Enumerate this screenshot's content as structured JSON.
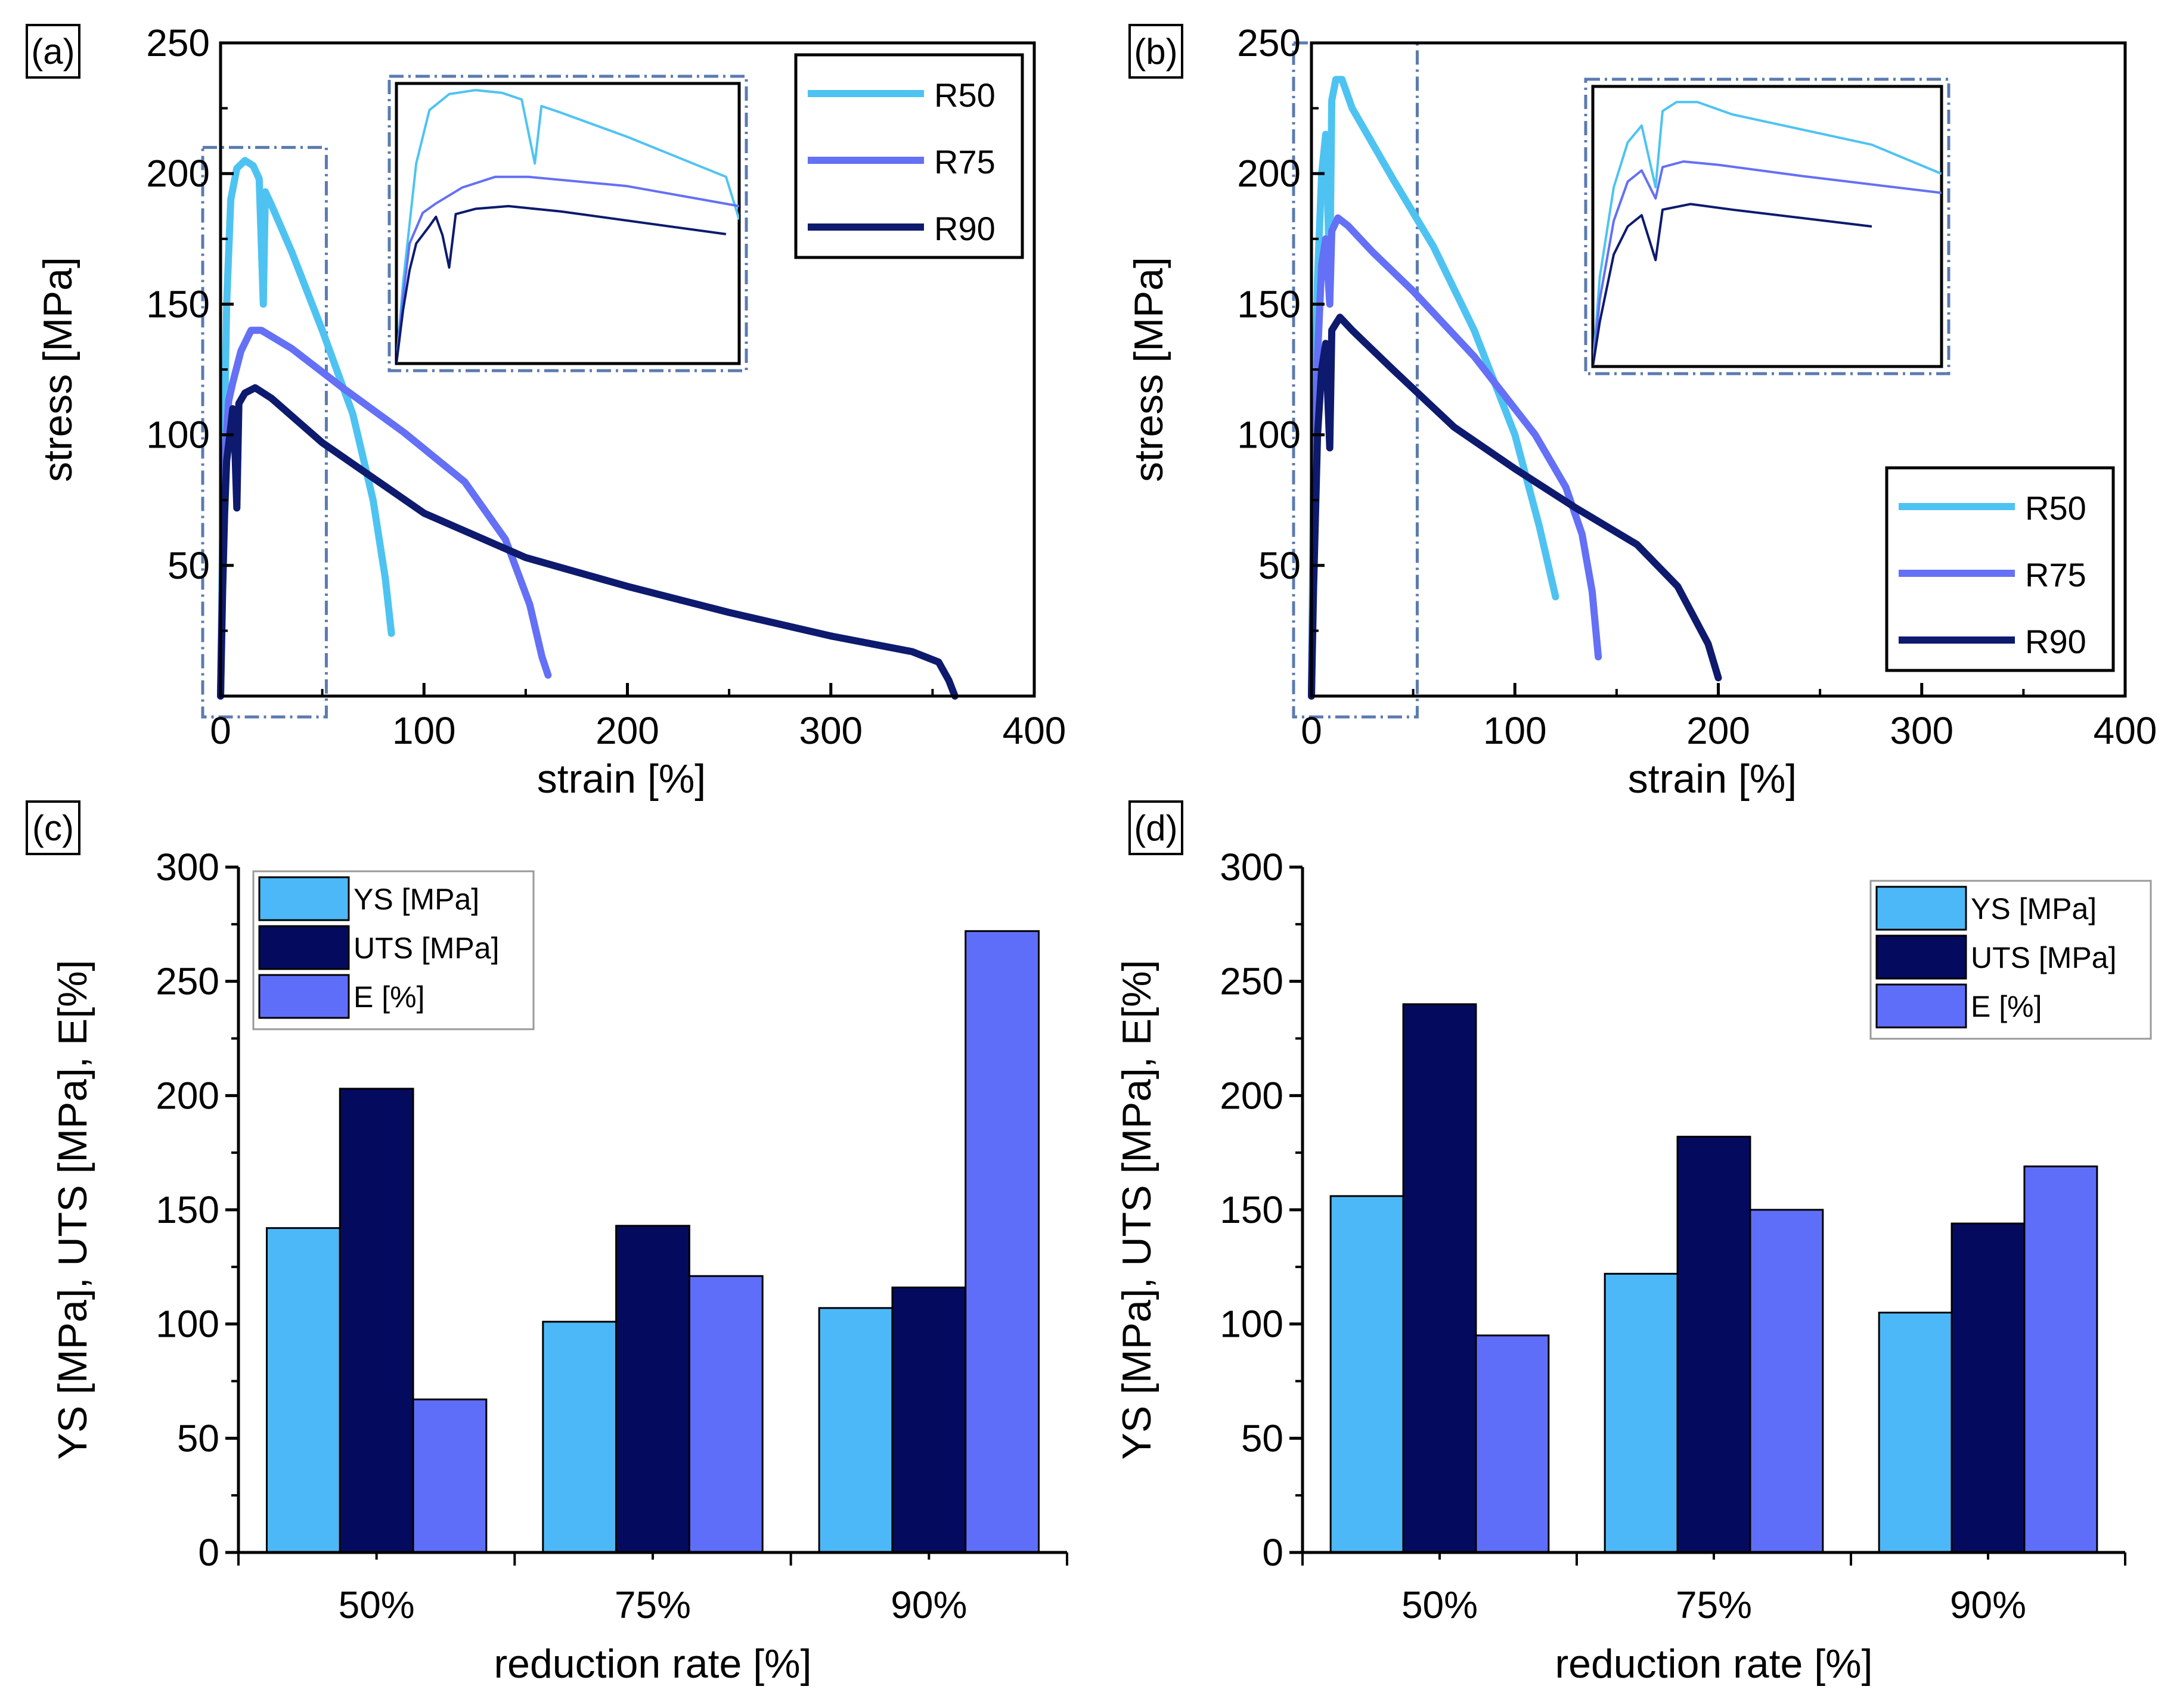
{
  "chart_data": [
    {
      "panel": "(a)",
      "type": "line",
      "xlabel": "strain [%]",
      "ylabel": "stress [MPa]",
      "xlim": [
        0,
        400
      ],
      "ylim": [
        0,
        250
      ],
      "xticks": [
        "0",
        "100",
        "200",
        "300",
        "400"
      ],
      "yticks": [
        "50",
        "100",
        "150",
        "200",
        "250"
      ],
      "legend": [
        "R50",
        "R75",
        "R90"
      ],
      "series": [
        {
          "name": "R50",
          "color": "#4ec3f2",
          "points": [
            [
              0,
              0
            ],
            [
              1,
              60
            ],
            [
              3,
              150
            ],
            [
              5,
              190
            ],
            [
              8,
              202
            ],
            [
              12,
              205
            ],
            [
              16,
              203
            ],
            [
              19,
              198
            ],
            [
              21,
              150
            ],
            [
              22,
              193
            ],
            [
              25,
              188
            ],
            [
              35,
              170
            ],
            [
              50,
              140
            ],
            [
              65,
              108
            ],
            [
              75,
              75
            ],
            [
              81,
              45
            ],
            [
              84,
              24
            ]
          ]
        },
        {
          "name": "R75",
          "color": "#6470f5",
          "points": [
            [
              0,
              0
            ],
            [
              1,
              50
            ],
            [
              2,
              90
            ],
            [
              4,
              113
            ],
            [
              6,
              120
            ],
            [
              10,
              132
            ],
            [
              15,
              140
            ],
            [
              20,
              140
            ],
            [
              35,
              133
            ],
            [
              60,
              118
            ],
            [
              90,
              101
            ],
            [
              120,
              82
            ],
            [
              140,
              60
            ],
            [
              152,
              35
            ],
            [
              158,
              15
            ],
            [
              161,
              8
            ]
          ]
        },
        {
          "name": "R90",
          "color": "#0d1a6e",
          "points": [
            [
              0,
              0
            ],
            [
              1,
              40
            ],
            [
              2,
              70
            ],
            [
              3,
              90
            ],
            [
              5,
              103
            ],
            [
              6,
              110
            ],
            [
              7,
              96
            ],
            [
              8,
              72
            ],
            [
              9,
              112
            ],
            [
              12,
              116
            ],
            [
              17,
              118
            ],
            [
              25,
              114
            ],
            [
              50,
              97
            ],
            [
              100,
              70
            ],
            [
              150,
              53
            ],
            [
              200,
              42
            ],
            [
              250,
              32
            ],
            [
              300,
              23
            ],
            [
              340,
              17
            ],
            [
              353,
              13
            ],
            [
              358,
              6
            ],
            [
              361,
              0
            ]
          ]
        }
      ],
      "inset": {
        "legend_position": "top-center"
      }
    },
    {
      "panel": "(b)",
      "type": "line",
      "xlabel": "strain [%]",
      "ylabel": "stress [MPa]",
      "xlim": [
        0,
        400
      ],
      "ylim": [
        0,
        250
      ],
      "xticks": [
        "0",
        "100",
        "200",
        "300",
        "400"
      ],
      "yticks": [
        "50",
        "100",
        "150",
        "200",
        "250"
      ],
      "legend": [
        "R50",
        "R75",
        "R90"
      ],
      "series": [
        {
          "name": "R50",
          "color": "#4ec3f2",
          "points": [
            [
              0,
              0
            ],
            [
              1,
              80
            ],
            [
              3,
              160
            ],
            [
              5,
              200
            ],
            [
              7,
              215
            ],
            [
              9,
              160
            ],
            [
              10,
              228
            ],
            [
              12,
              236
            ],
            [
              15,
              236
            ],
            [
              20,
              225
            ],
            [
              40,
              198
            ],
            [
              60,
              172
            ],
            [
              80,
              140
            ],
            [
              100,
              100
            ],
            [
              112,
              65
            ],
            [
              120,
              38
            ]
          ]
        },
        {
          "name": "R75",
          "color": "#6470f5",
          "points": [
            [
              0,
              0
            ],
            [
              1,
              60
            ],
            [
              3,
              130
            ],
            [
              5,
              165
            ],
            [
              7,
              175
            ],
            [
              9,
              150
            ],
            [
              10,
              178
            ],
            [
              13,
              183
            ],
            [
              18,
              180
            ],
            [
              30,
              170
            ],
            [
              50,
              155
            ],
            [
              80,
              130
            ],
            [
              110,
              100
            ],
            [
              125,
              80
            ],
            [
              133,
              62
            ],
            [
              138,
              40
            ],
            [
              141,
              15
            ]
          ]
        },
        {
          "name": "R90",
          "color": "#0d1a6e",
          "points": [
            [
              0,
              0
            ],
            [
              1,
              40
            ],
            [
              3,
              100
            ],
            [
              5,
              125
            ],
            [
              7,
              135
            ],
            [
              9,
              95
            ],
            [
              10,
              140
            ],
            [
              14,
              145
            ],
            [
              20,
              140
            ],
            [
              40,
              125
            ],
            [
              70,
              103
            ],
            [
              100,
              87
            ],
            [
              130,
              72
            ],
            [
              160,
              58
            ],
            [
              180,
              42
            ],
            [
              195,
              20
            ],
            [
              200,
              7
            ]
          ]
        }
      ],
      "inset": {
        "legend_position": "bottom-right"
      }
    },
    {
      "panel": "(c)",
      "type": "bar",
      "xlabel": "reduction rate [%]",
      "ylabel": "YS [MPa], UTS [MPa], E[%]",
      "ylim": [
        0,
        300
      ],
      "yticks": [
        "0",
        "50",
        "100",
        "150",
        "200",
        "250",
        "300"
      ],
      "categories": [
        "50%",
        "75%",
        "90%"
      ],
      "legend_position": "top-left",
      "series": [
        {
          "name": "YS [MPa]",
          "color": "#4db8f7",
          "values": [
            142,
            101,
            107
          ]
        },
        {
          "name": "UTS [MPa]",
          "color": "#040b5e",
          "values": [
            203,
            143,
            116
          ]
        },
        {
          "name": "E [%]",
          "color": "#5f6ef9",
          "values": [
            67,
            121,
            272
          ]
        }
      ]
    },
    {
      "panel": "(d)",
      "type": "bar",
      "xlabel": "reduction rate [%]",
      "ylabel": "YS [MPa], UTS [MPa], E[%]",
      "ylim": [
        0,
        300
      ],
      "yticks": [
        "0",
        "50",
        "100",
        "150",
        "200",
        "250",
        "300"
      ],
      "categories": [
        "50%",
        "75%",
        "90%"
      ],
      "legend_position": "top-right",
      "series": [
        {
          "name": "YS [MPa]",
          "color": "#4db8f7",
          "values": [
            156,
            122,
            105
          ]
        },
        {
          "name": "UTS [MPa]",
          "color": "#040b5e",
          "values": [
            240,
            182,
            144
          ]
        },
        {
          "name": "E [%]",
          "color": "#5f6ef9",
          "values": [
            95,
            150,
            169
          ]
        }
      ]
    }
  ]
}
